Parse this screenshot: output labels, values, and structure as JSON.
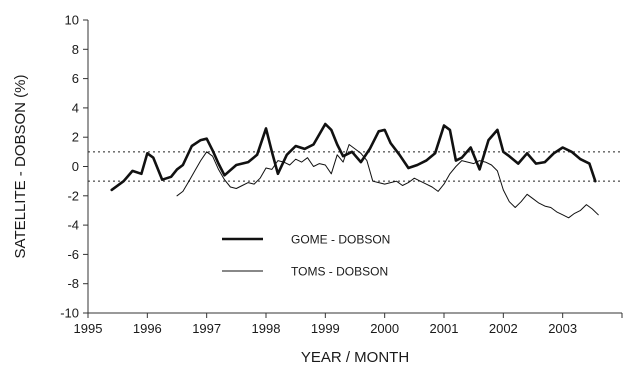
{
  "chart_data": {
    "type": "line",
    "xlabel": "YEAR / MONTH",
    "ylabel": "SATELLITE - DOBSON   (%)",
    "xlim": [
      1995,
      2004
    ],
    "ylim": [
      -10,
      10
    ],
    "x_ticks": [
      1995,
      1996,
      1997,
      1998,
      1999,
      2000,
      2001,
      2002,
      2003
    ],
    "y_ticks": [
      -10,
      -8,
      -6,
      -4,
      -2,
      0,
      2,
      4,
      6,
      8,
      10
    ],
    "reference_lines": [
      1,
      -1
    ],
    "grid": false,
    "legend_position": "lower-left inside",
    "series": [
      {
        "name": "GOME - DOBSON",
        "style": "thick",
        "color": "#111111",
        "x": [
          1995.4,
          1995.6,
          1995.75,
          1995.9,
          1996.0,
          1996.1,
          1996.25,
          1996.4,
          1996.5,
          1996.6,
          1996.75,
          1996.9,
          1997.0,
          1997.1,
          1997.2,
          1997.3,
          1997.5,
          1997.7,
          1997.85,
          1998.0,
          1998.1,
          1998.2,
          1998.35,
          1998.5,
          1998.65,
          1998.8,
          1999.0,
          1999.1,
          1999.2,
          1999.3,
          1999.45,
          1999.6,
          1999.75,
          1999.9,
          2000.0,
          2000.1,
          2000.25,
          2000.4,
          2000.55,
          2000.7,
          2000.85,
          2001.0,
          2001.1,
          2001.2,
          2001.3,
          2001.45,
          2001.6,
          2001.75,
          2001.9,
          2002.0,
          2002.1,
          2002.25,
          2002.4,
          2002.55,
          2002.7,
          2002.85,
          2003.0,
          2003.15,
          2003.3,
          2003.45,
          2003.55
        ],
        "y": [
          -1.6,
          -1.0,
          -0.3,
          -0.5,
          0.9,
          0.6,
          -0.9,
          -0.7,
          -0.2,
          0.1,
          1.4,
          1.8,
          1.9,
          1.1,
          0.2,
          -0.6,
          0.1,
          0.3,
          0.8,
          2.6,
          1.0,
          -0.5,
          0.8,
          1.4,
          1.2,
          1.5,
          2.9,
          2.5,
          1.5,
          0.7,
          1.0,
          0.3,
          1.2,
          2.4,
          2.5,
          1.6,
          0.8,
          -0.1,
          0.1,
          0.4,
          0.9,
          2.8,
          2.5,
          0.4,
          0.6,
          1.3,
          -0.2,
          1.8,
          2.5,
          1.0,
          0.7,
          0.2,
          0.9,
          0.2,
          0.3,
          0.9,
          1.3,
          1.0,
          0.5,
          0.2,
          -1.0
        ]
      },
      {
        "name": "TOMS - DOBSON",
        "style": "thin",
        "color": "#111111",
        "x": [
          1996.5,
          1996.6,
          1996.7,
          1996.8,
          1996.9,
          1997.0,
          1997.1,
          1997.2,
          1997.3,
          1997.4,
          1997.5,
          1997.6,
          1997.7,
          1997.8,
          1997.9,
          1998.0,
          1998.1,
          1998.2,
          1998.3,
          1998.4,
          1998.5,
          1998.6,
          1998.7,
          1998.8,
          1998.9,
          1999.0,
          1999.1,
          1999.2,
          1999.3,
          1999.4,
          1999.5,
          1999.6,
          1999.7,
          1999.8,
          1999.9,
          2000.0,
          2000.1,
          2000.2,
          2000.3,
          2000.4,
          2000.5,
          2000.6,
          2000.7,
          2000.8,
          2000.9,
          2001.0,
          2001.1,
          2001.2,
          2001.3,
          2001.4,
          2001.5,
          2001.6,
          2001.7,
          2001.8,
          2001.9,
          2002.0,
          2002.1,
          2002.2,
          2002.3,
          2002.4,
          2002.5,
          2002.6,
          2002.7,
          2002.8,
          2002.9,
          2003.0,
          2003.1,
          2003.2,
          2003.3,
          2003.4,
          2003.5,
          2003.6
        ],
        "y": [
          -2.0,
          -1.7,
          -1.0,
          -0.3,
          0.4,
          1.0,
          0.7,
          -0.2,
          -0.9,
          -1.4,
          -1.5,
          -1.3,
          -1.1,
          -1.2,
          -0.8,
          -0.1,
          -0.2,
          0.4,
          0.3,
          0.1,
          0.5,
          0.3,
          0.6,
          0.0,
          0.2,
          0.1,
          -0.5,
          0.8,
          0.3,
          1.5,
          1.2,
          0.9,
          0.4,
          -1.0,
          -1.1,
          -1.2,
          -1.1,
          -1.0,
          -1.3,
          -1.1,
          -0.8,
          -1.0,
          -1.2,
          -1.4,
          -1.7,
          -1.2,
          -0.5,
          0.0,
          0.4,
          0.3,
          0.2,
          0.4,
          0.3,
          0.1,
          -0.3,
          -1.6,
          -2.4,
          -2.8,
          -2.4,
          -1.9,
          -2.2,
          -2.5,
          -2.7,
          -2.8,
          -3.1,
          -3.3,
          -3.5,
          -3.2,
          -3.0,
          -2.6,
          -2.9,
          -3.3
        ]
      }
    ]
  }
}
